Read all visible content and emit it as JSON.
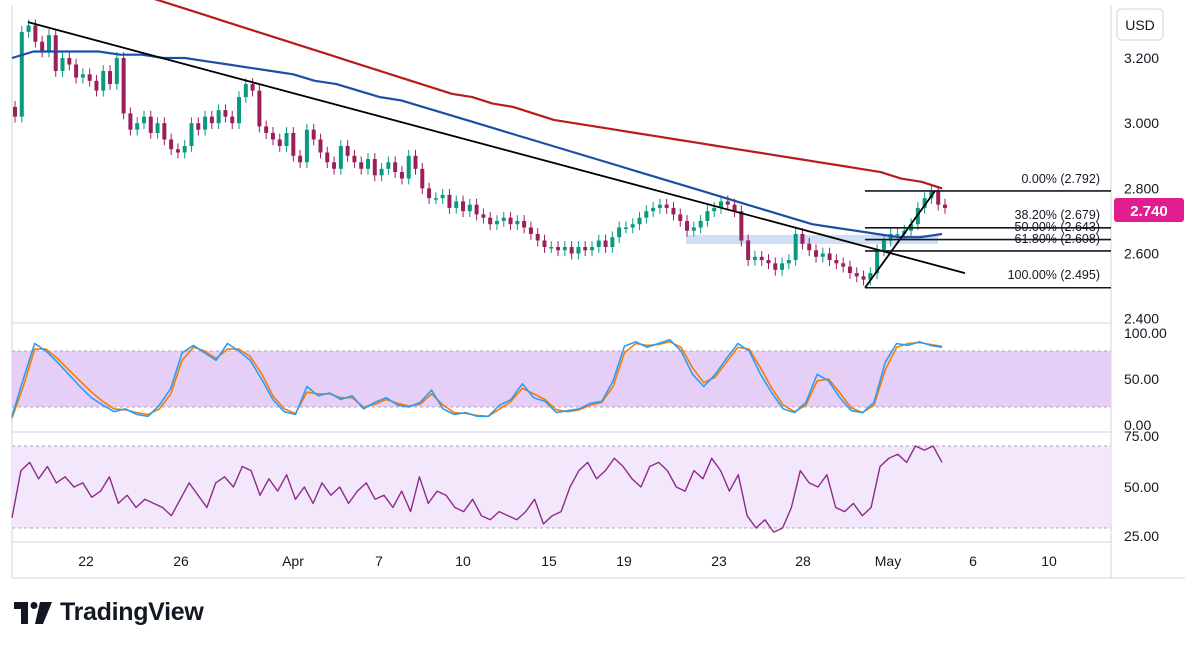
{
  "currency": "USD",
  "brand": "TradingView",
  "colors": {
    "up": "#089981",
    "down": "#9b1f5c",
    "ema_short": "#1c4ea8",
    "ema_long": "#b71c1c",
    "trendline": "#000000",
    "price_label": "#e11d8f",
    "stoch_k": "#2a9df4",
    "stoch_d": "#f57c00",
    "rsi": "#8e2a8c",
    "band": "#e9d2f7"
  },
  "chart_data": [
    {
      "type": "candlestick",
      "title": "",
      "ylim": [
        2.4,
        3.32
      ],
      "y_ticks": [
        "3.200",
        "3.000",
        "2.800",
        "2.600",
        "2.400"
      ],
      "x_ticks": [
        "22",
        "26",
        "Apr",
        "7",
        "10",
        "15",
        "19",
        "23",
        "28",
        "May",
        "6",
        "10"
      ],
      "last_price": "2.740",
      "closes": [
        3.02,
        3.28,
        3.3,
        3.25,
        3.22,
        3.27,
        3.16,
        3.2,
        3.18,
        3.14,
        3.15,
        3.13,
        3.1,
        3.16,
        3.12,
        3.2,
        3.03,
        2.98,
        3.0,
        3.02,
        2.97,
        3.0,
        2.95,
        2.92,
        2.91,
        2.93,
        3.0,
        2.98,
        3.02,
        3.0,
        3.04,
        3.02,
        3.0,
        3.08,
        3.12,
        3.1,
        2.99,
        2.97,
        2.95,
        2.93,
        2.97,
        2.9,
        2.88,
        2.98,
        2.95,
        2.91,
        2.88,
        2.86,
        2.93,
        2.9,
        2.88,
        2.86,
        2.89,
        2.84,
        2.86,
        2.88,
        2.85,
        2.83,
        2.9,
        2.86,
        2.8,
        2.77,
        2.77,
        2.78,
        2.74,
        2.76,
        2.73,
        2.75,
        2.72,
        2.71,
        2.69,
        2.7,
        2.71,
        2.69,
        2.7,
        2.68,
        2.66,
        2.64,
        2.62,
        2.62,
        2.61,
        2.62,
        2.6,
        2.62,
        2.61,
        2.62,
        2.64,
        2.62,
        2.65,
        2.68,
        2.68,
        2.69,
        2.71,
        2.73,
        2.74,
        2.75,
        2.74,
        2.72,
        2.7,
        2.67,
        2.68,
        2.7,
        2.73,
        2.74,
        2.76,
        2.75,
        2.73,
        2.64,
        2.58,
        2.59,
        2.58,
        2.57,
        2.55,
        2.57,
        2.58,
        2.66,
        2.63,
        2.61,
        2.59,
        2.6,
        2.58,
        2.57,
        2.56,
        2.54,
        2.53,
        2.52,
        2.54,
        2.61,
        2.64,
        2.66,
        2.66,
        2.67,
        2.69,
        2.74,
        2.77,
        2.79,
        2.75,
        2.74
      ],
      "ema_short": [
        3.2,
        3.22,
        3.22,
        3.22,
        3.22,
        3.21,
        3.21,
        3.2,
        3.2,
        3.19,
        3.18,
        3.17,
        3.16,
        3.15,
        3.13,
        3.12,
        3.1,
        3.08,
        3.07,
        3.05,
        3.03,
        3.01,
        2.99,
        2.97,
        2.95,
        2.93,
        2.91,
        2.89,
        2.87,
        2.85,
        2.83,
        2.81,
        2.79,
        2.77,
        2.75,
        2.73,
        2.71,
        2.69,
        2.68,
        2.67,
        2.66,
        2.65,
        2.65,
        2.66
      ],
      "ema_long": [
        3.41,
        3.39,
        3.37,
        3.35,
        3.33,
        3.31,
        3.29,
        3.27,
        3.25,
        3.23,
        3.21,
        3.19,
        3.17,
        3.15,
        3.13,
        3.11,
        3.09,
        3.08,
        3.06,
        3.05,
        3.03,
        3.01,
        3.0,
        2.99,
        2.98,
        2.97,
        2.96,
        2.95,
        2.94,
        2.93,
        2.92,
        2.91,
        2.9,
        2.89,
        2.88,
        2.87,
        2.86,
        2.85,
        2.83,
        2.82,
        2.8
      ],
      "trendline": [
        [
          0,
          3.31
        ],
        [
          142,
          2.54
        ]
      ],
      "fibonacci": [
        {
          "ratio": "0.00%",
          "value": 2.792,
          "label": "0.00% (2.792)"
        },
        {
          "ratio": "38.20%",
          "value": 2.679,
          "label": "38.20% (2.679)"
        },
        {
          "ratio": "50.00%",
          "value": 2.643,
          "label": "50.00% (2.643)"
        },
        {
          "ratio": "61.80%",
          "value": 2.608,
          "label": "61.80% (2.608)"
        },
        {
          "ratio": "100.00%",
          "value": 2.495,
          "label": "100.00% (2.495)"
        }
      ]
    },
    {
      "type": "line",
      "title": "",
      "ylim": [
        0,
        100
      ],
      "y_ticks": [
        "100.00",
        "50.00",
        "0.00"
      ],
      "bands": [
        80,
        20
      ],
      "series": [
        {
          "values": [
            10,
            50,
            88,
            80,
            68,
            55,
            42,
            30,
            22,
            15,
            18,
            12,
            10,
            22,
            40,
            78,
            86,
            78,
            70,
            88,
            80,
            70,
            50,
            28,
            15,
            12,
            42,
            32,
            35,
            28,
            32,
            18,
            25,
            30,
            22,
            20,
            25,
            38,
            18,
            12,
            14,
            10,
            10,
            22,
            28,
            45,
            30,
            26,
            14,
            16,
            18,
            24,
            26,
            48,
            85,
            90,
            84,
            88,
            92,
            80,
            55,
            42,
            55,
            72,
            88,
            80,
            55,
            35,
            18,
            14,
            25,
            55,
            48,
            30,
            16,
            14,
            25,
            68,
            88,
            86,
            90,
            86,
            84
          ]
        },
        {
          "values": [
            8,
            42,
            82,
            82,
            72,
            60,
            48,
            36,
            26,
            18,
            17,
            14,
            12,
            18,
            34,
            70,
            84,
            80,
            72,
            82,
            82,
            74,
            56,
            32,
            18,
            13,
            36,
            34,
            34,
            30,
            30,
            20,
            23,
            28,
            24,
            21,
            23,
            34,
            22,
            14,
            13,
            11,
            10,
            18,
            26,
            40,
            34,
            28,
            17,
            15,
            17,
            22,
            25,
            42,
            78,
            88,
            86,
            87,
            90,
            84,
            62,
            46,
            52,
            68,
            84,
            82,
            62,
            40,
            22,
            15,
            22,
            48,
            50,
            35,
            19,
            14,
            22,
            60,
            84,
            88,
            89,
            87,
            85
          ]
        }
      ]
    },
    {
      "type": "line",
      "title": "",
      "ylim": [
        25,
        75
      ],
      "y_ticks": [
        "75.00",
        "50.00",
        "25.00"
      ],
      "bands": [
        70,
        30
      ],
      "series": [
        {
          "values": [
            35,
            58,
            62,
            54,
            60,
            52,
            55,
            50,
            52,
            45,
            48,
            55,
            42,
            46,
            40,
            44,
            42,
            40,
            36,
            44,
            52,
            46,
            40,
            52,
            55,
            50,
            60,
            58,
            46,
            54,
            48,
            56,
            44,
            50,
            42,
            52,
            46,
            50,
            42,
            48,
            52,
            44,
            46,
            40,
            48,
            38,
            55,
            42,
            48,
            46,
            40,
            38,
            44,
            36,
            34,
            38,
            36,
            34,
            38,
            44,
            32,
            36,
            38,
            50,
            58,
            62,
            54,
            58,
            64,
            60,
            54,
            50,
            60,
            62,
            58,
            50,
            48,
            58,
            54,
            64,
            58,
            48,
            56,
            36,
            30,
            34,
            28,
            30,
            40,
            58,
            52,
            50,
            56,
            40,
            38,
            42,
            36,
            40,
            60,
            64,
            66,
            62,
            70,
            68,
            70,
            62
          ]
        }
      ]
    }
  ],
  "fib_labels": {
    "l0": "0.00% (2.792)",
    "l382": "38.20% (2.679)",
    "l50": "50.00% (2.643)",
    "l618": "61.80% (2.608)",
    "l100": "100.00% (2.495)"
  }
}
